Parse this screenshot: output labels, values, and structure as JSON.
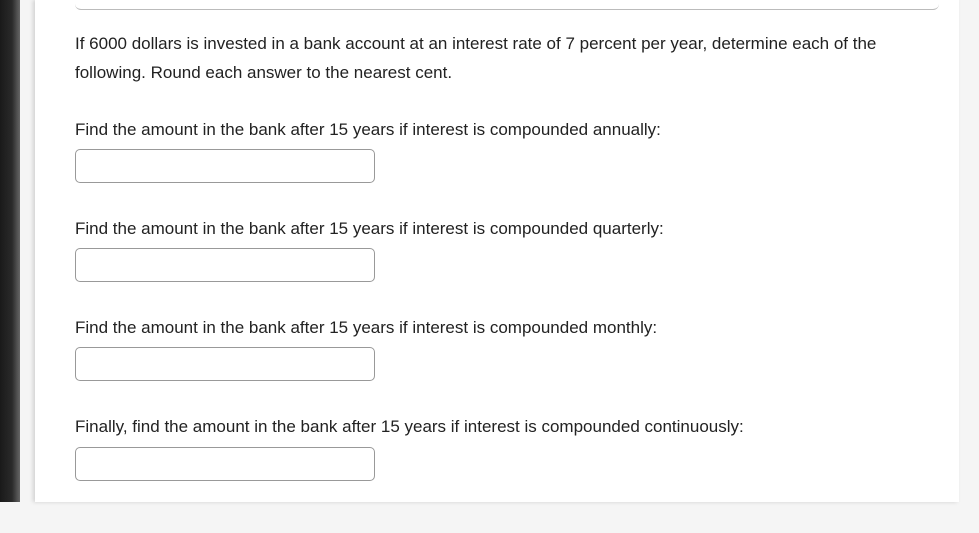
{
  "problem": {
    "intro": "If 6000 dollars is invested in a bank account at an interest rate of 7 percent per year, determine each of the following. Round each answer to the nearest cent.",
    "questions": [
      {
        "prompt": "Find the amount in the bank after 15 years if interest is compounded annually:",
        "value": ""
      },
      {
        "prompt": "Find the amount in the bank after 15 years if interest is compounded quarterly:",
        "value": ""
      },
      {
        "prompt": "Find the amount in the bank after 15 years if interest is compounded monthly:",
        "value": ""
      },
      {
        "prompt": "Finally, find the amount in the bank after 15 years if interest is compounded continuously:",
        "value": ""
      }
    ]
  },
  "styling": {
    "background_color": "#ffffff",
    "text_color": "#222222",
    "input_border_color": "#999999",
    "input_border_radius": 5,
    "body_fontsize": 17,
    "input_width": 300,
    "input_height": 34,
    "font_family": "Arial"
  }
}
